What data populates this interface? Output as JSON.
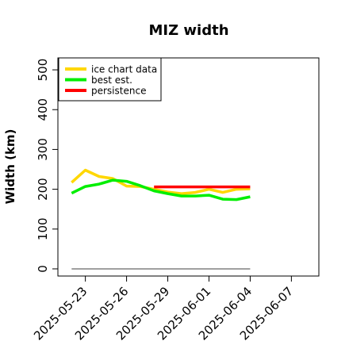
{
  "chart_data": {
    "type": "line",
    "title": "MIZ width",
    "xlabel": "",
    "ylabel": "Width (km)",
    "x_ticks": [
      "2025-05-23",
      "2025-05-26",
      "2025-05-29",
      "2025-06-01",
      "2025-06-04",
      "2025-06-07"
    ],
    "y_ticks": [
      0,
      100,
      200,
      300,
      400,
      500
    ],
    "xlim": [
      "2025-05-21T00:00",
      "2025-06-09T00:00"
    ],
    "ylim": [
      -18,
      530
    ],
    "grid": false,
    "legend_position": "top-left",
    "series": [
      {
        "name": "ice chart data",
        "color": "#ffd700",
        "points": [
          [
            "2025-05-22",
            217
          ],
          [
            "2025-05-23",
            248
          ],
          [
            "2025-05-24",
            232
          ],
          [
            "2025-05-25",
            227
          ],
          [
            "2025-05-26",
            208
          ],
          [
            "2025-05-27",
            207
          ],
          [
            "2025-05-28",
            200
          ],
          [
            "2025-05-29",
            193
          ],
          [
            "2025-05-30",
            189
          ],
          [
            "2025-05-31",
            192
          ],
          [
            "2025-06-01",
            200
          ],
          [
            "2025-06-02",
            192
          ],
          [
            "2025-06-03",
            200
          ],
          [
            "2025-06-04",
            201
          ]
        ]
      },
      {
        "name": "best est.",
        "color": "#00ee00",
        "points": [
          [
            "2025-05-22",
            190
          ],
          [
            "2025-05-23",
            207
          ],
          [
            "2025-05-24",
            213
          ],
          [
            "2025-05-25",
            223
          ],
          [
            "2025-05-26",
            220
          ],
          [
            "2025-05-27",
            209
          ],
          [
            "2025-05-28",
            196
          ],
          [
            "2025-05-29",
            189
          ],
          [
            "2025-05-30",
            183
          ],
          [
            "2025-05-31",
            183
          ],
          [
            "2025-06-01",
            185
          ],
          [
            "2025-06-02",
            175
          ],
          [
            "2025-06-03",
            174
          ],
          [
            "2025-06-04",
            181
          ]
        ]
      },
      {
        "name": "persistence",
        "color": "#ff0000",
        "points": [
          [
            "2025-05-28",
            206
          ],
          [
            "2025-06-04",
            206
          ]
        ]
      },
      {
        "name": "",
        "color": "#808080",
        "points": [
          [
            "2025-05-22",
            0
          ],
          [
            "2025-06-04",
            0
          ]
        ]
      }
    ]
  }
}
